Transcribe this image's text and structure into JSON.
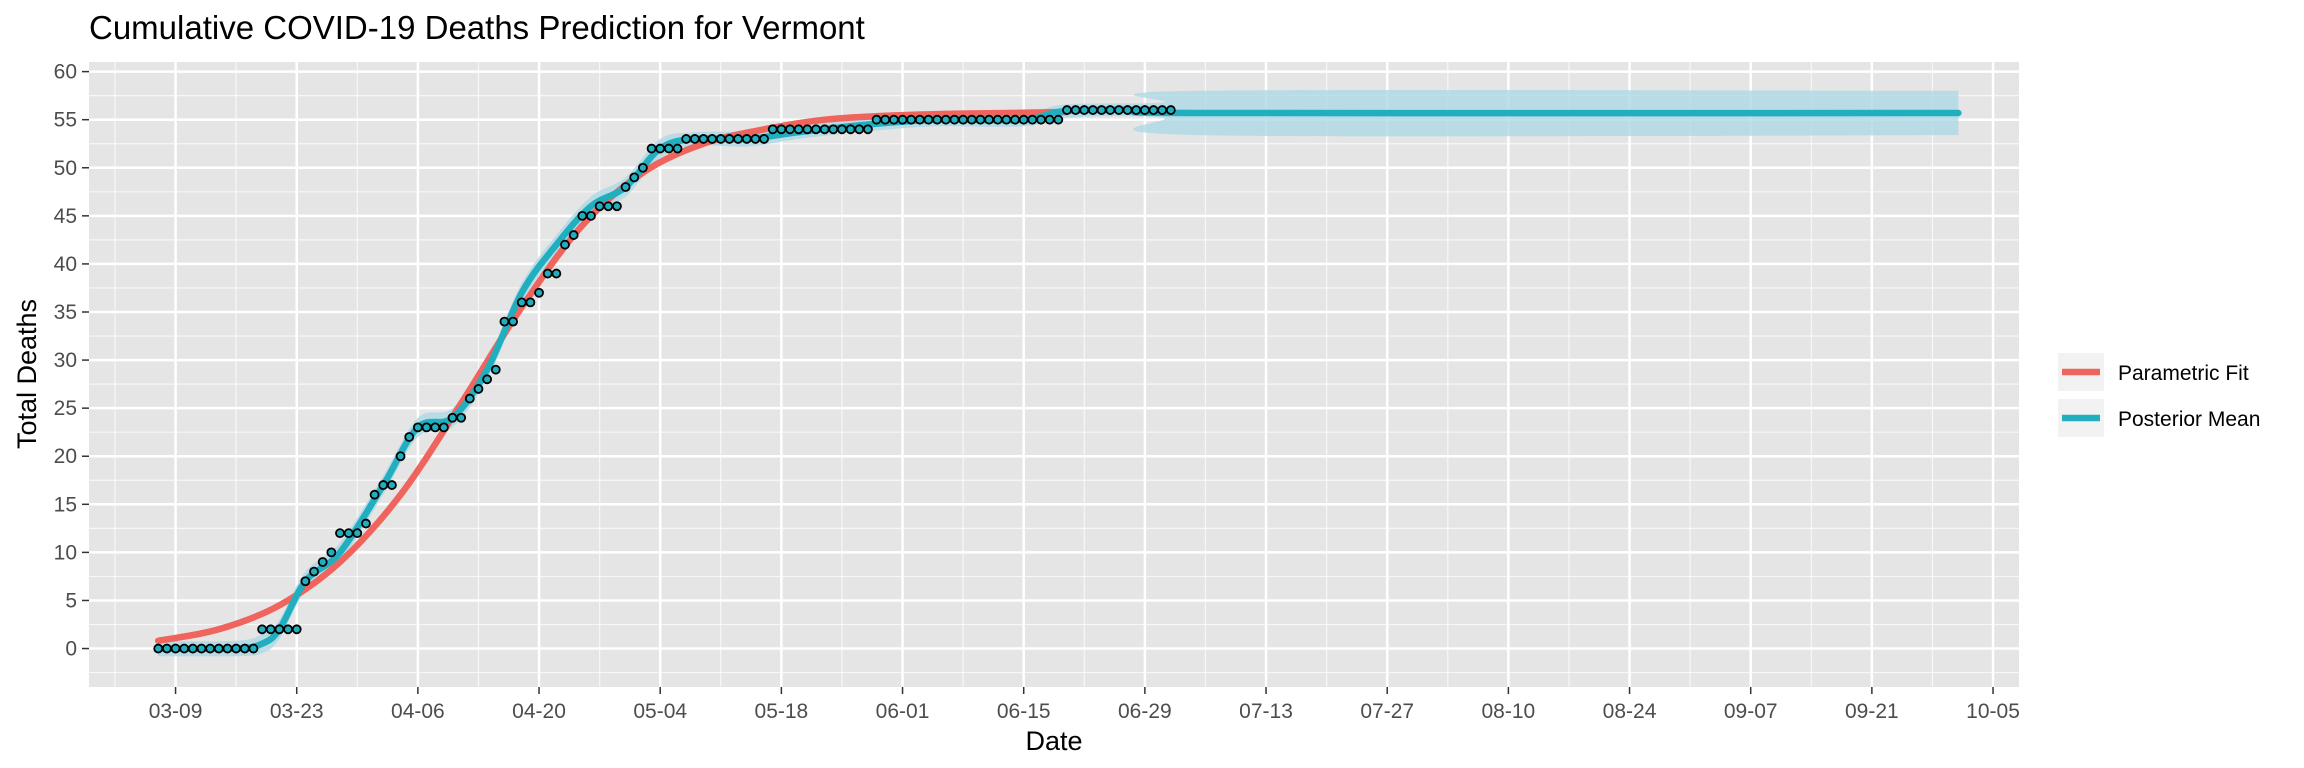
{
  "chart_data": {
    "type": "line",
    "title": "Cumulative COVID-19 Deaths Prediction for Vermont",
    "xlabel": "Date",
    "ylabel": "Total Deaths",
    "x_ticks": [
      "03-09",
      "03-23",
      "04-06",
      "04-20",
      "05-04",
      "05-18",
      "06-01",
      "06-15",
      "06-29",
      "07-13",
      "07-27",
      "08-10",
      "08-24",
      "09-07",
      "09-21",
      "10-05"
    ],
    "y_ticks": [
      0,
      5,
      10,
      15,
      20,
      25,
      30,
      35,
      40,
      45,
      50,
      55,
      60
    ],
    "xlim": [
      "2020-02-28",
      "2020-10-08"
    ],
    "ylim": [
      -4,
      61
    ],
    "grid": true,
    "legend_position": "right",
    "colors": {
      "panel": "#E5E5E5",
      "grid": "#FFFFFF",
      "parametric": "#F0645E",
      "posterior": "#21AFC0",
      "band": "#ADD8E6"
    },
    "legend": [
      {
        "name": "Parametric Fit",
        "color": "#F0645E"
      },
      {
        "name": "Posterior Mean",
        "color": "#21AFC0"
      }
    ],
    "observed": {
      "start_date": "2020-03-07",
      "values": [
        0,
        0,
        0,
        0,
        0,
        0,
        0,
        0,
        0,
        0,
        0,
        0,
        2,
        2,
        2,
        2,
        2,
        7,
        8,
        9,
        10,
        12,
        12,
        12,
        13,
        16,
        17,
        17,
        20,
        22,
        23,
        23,
        23,
        23,
        24,
        24,
        26,
        27,
        28,
        29,
        34,
        34,
        36,
        36,
        37,
        39,
        39,
        42,
        43,
        45,
        45,
        46,
        46,
        46,
        48,
        49,
        50,
        52,
        52,
        52,
        52,
        53,
        53,
        53,
        53,
        53,
        53,
        53,
        53,
        53,
        53,
        54,
        54,
        54,
        54,
        54,
        54,
        54,
        54,
        54,
        54,
        54,
        54,
        55,
        55,
        55,
        55,
        55,
        55,
        55,
        55,
        55,
        55,
        55,
        55,
        55,
        55,
        55,
        55,
        55,
        55,
        55,
        55,
        55,
        55,
        56,
        56,
        56,
        56,
        56,
        56,
        56,
        56,
        56,
        56,
        56,
        56,
        56
      ]
    },
    "series": [
      {
        "name": "Parametric Fit",
        "x": [
          "2020-03-07",
          "2020-03-14",
          "2020-03-21",
          "2020-03-28",
          "2020-04-04",
          "2020-04-11",
          "2020-04-18",
          "2020-04-25",
          "2020-05-02",
          "2020-05-09",
          "2020-05-16",
          "2020-05-23",
          "2020-05-30",
          "2020-06-06",
          "2020-06-13",
          "2020-06-20"
        ],
        "values": [
          0.8,
          2.0,
          4.5,
          9.0,
          16.0,
          25.5,
          35.5,
          44.0,
          49.5,
          52.5,
          54.0,
          55.0,
          55.4,
          55.6,
          55.7,
          55.8
        ]
      },
      {
        "name": "Posterior Mean",
        "x": [
          "2020-03-07",
          "2020-03-16",
          "2020-03-19",
          "2020-03-21",
          "2020-03-24",
          "2020-03-28",
          "2020-04-02",
          "2020-04-06",
          "2020-04-10",
          "2020-04-14",
          "2020-04-18",
          "2020-04-22",
          "2020-04-26",
          "2020-04-30",
          "2020-05-04",
          "2020-05-08",
          "2020-05-14",
          "2020-05-20",
          "2020-05-28",
          "2020-06-05",
          "2020-06-15",
          "2020-06-20",
          "2020-07-01",
          "2020-07-05",
          "2020-10-01"
        ],
        "values": [
          0,
          0,
          0.5,
          2,
          7,
          10,
          17,
          23,
          24,
          29,
          37,
          42,
          46,
          48,
          52,
          53,
          53,
          53.7,
          54.5,
          55,
          55,
          55.9,
          56,
          55.7,
          55.7
        ],
        "band_upper": [
          0.8,
          0.8,
          1.5,
          3,
          8,
          11,
          18,
          24,
          25,
          30,
          38,
          43,
          47,
          49,
          53,
          53.7,
          53.8,
          54.4,
          55.2,
          55.7,
          55.7,
          56.6,
          56.8,
          58,
          58
        ],
        "band_lower": [
          -0.8,
          -0.8,
          -0.5,
          1,
          6,
          9,
          16,
          22,
          23,
          28,
          36,
          41,
          45,
          47,
          51,
          52.3,
          52.2,
          53,
          53.8,
          54.3,
          54.3,
          55.2,
          55.2,
          53.4,
          53.4
        ]
      }
    ]
  }
}
